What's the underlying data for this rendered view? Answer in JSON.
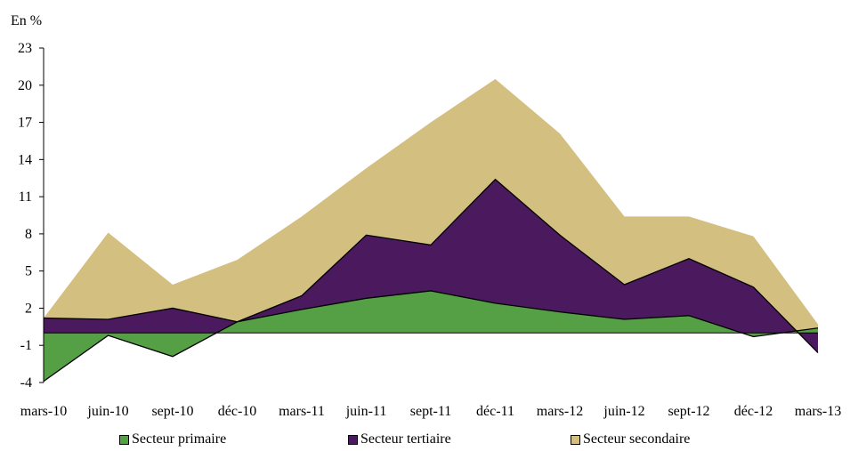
{
  "chart_data": {
    "type": "area",
    "unit_label": "En %",
    "categories": [
      "mars-10",
      "juin-10",
      "sept-10",
      "déc-10",
      "mars-11",
      "juin-11",
      "sept-11",
      "déc-11",
      "mars-12",
      "juin-12",
      "sept-12",
      "déc-12",
      "mars-13"
    ],
    "series": [
      {
        "name": "Secteur primaire",
        "color": "#55A045",
        "values": [
          -3.9,
          -0.2,
          -1.9,
          0.9,
          1.9,
          2.8,
          3.4,
          2.4,
          1.7,
          1.1,
          1.4,
          -0.3,
          0.4
        ]
      },
      {
        "name": "Secteur tertiaire",
        "color": "#4B1A5E",
        "values": [
          1.2,
          1.1,
          2.0,
          0.9,
          3.0,
          7.9,
          7.1,
          12.4,
          7.9,
          3.9,
          6.0,
          3.7,
          -1.6
        ]
      },
      {
        "name": "Secteur secondaire",
        "color": "#D3BF80",
        "values": [
          1.2,
          8.1,
          3.9,
          5.9,
          9.4,
          13.3,
          17.0,
          20.5,
          16.1,
          9.4,
          9.4,
          7.8,
          0.7
        ]
      }
    ],
    "y_ticks": [
      "23",
      "20",
      "17",
      "14",
      "11",
      "8",
      "5",
      "2",
      "-1",
      "-4"
    ],
    "ylim": [
      -4,
      23
    ],
    "grid": false,
    "legend_position": "bottom"
  }
}
